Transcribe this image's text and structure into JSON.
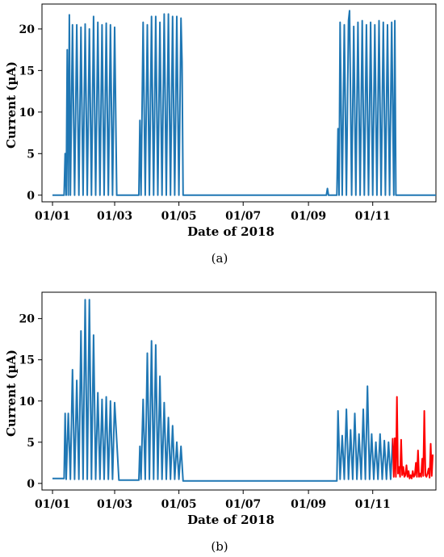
{
  "chart_data": [
    {
      "type": "line",
      "panel_label": "(a)",
      "xlabel": "Date of 2018",
      "ylabel": "Current (µA)",
      "x_ticks": [
        "01/01",
        "01/03",
        "01/05",
        "01/07",
        "01/09",
        "01/11"
      ],
      "x_tick_days": [
        0,
        59,
        120,
        181,
        243,
        304
      ],
      "y_ticks": [
        "0",
        "5",
        "10",
        "15",
        "20"
      ],
      "y_tick_values": [
        0,
        5,
        10,
        15,
        20
      ],
      "xlim": [
        "2017-12-22",
        "2018-12-31"
      ],
      "ylim": [
        -0.8,
        23
      ],
      "grid": false,
      "series": [
        {
          "color": "#1f77b4",
          "x": [
            "2018-01-01",
            "2018-01-12",
            "2018-01-13",
            "2018-01-14",
            "2018-01-15",
            "2018-01-16",
            "2018-01-17",
            "2018-01-18",
            "2018-01-20",
            "2018-01-22",
            "2018-01-24",
            "2018-01-26",
            "2018-01-28",
            "2018-01-30",
            "2018-02-01",
            "2018-02-03",
            "2018-02-05",
            "2018-02-07",
            "2018-02-09",
            "2018-02-11",
            "2018-02-13",
            "2018-02-15",
            "2018-02-17",
            "2018-02-19",
            "2018-02-21",
            "2018-02-23",
            "2018-02-25",
            "2018-02-27",
            "2018-03-01",
            "2018-03-03",
            "2018-03-05",
            "2018-03-24",
            "2018-03-25",
            "2018-03-26",
            "2018-03-28",
            "2018-03-30",
            "2018-04-01",
            "2018-04-03",
            "2018-04-05",
            "2018-04-07",
            "2018-04-09",
            "2018-04-11",
            "2018-04-13",
            "2018-04-15",
            "2018-04-17",
            "2018-04-19",
            "2018-04-21",
            "2018-04-23",
            "2018-04-25",
            "2018-04-27",
            "2018-04-29",
            "2018-05-01",
            "2018-05-03",
            "2018-05-04",
            "2018-05-05",
            "2018-06-01",
            "2018-07-01",
            "2018-08-01",
            "2018-09-01",
            "2018-09-18",
            "2018-09-19",
            "2018-09-20",
            "2018-09-28",
            "2018-09-29",
            "2018-09-30",
            "2018-10-01",
            "2018-10-03",
            "2018-10-05",
            "2018-10-07",
            "2018-10-09",
            "2018-10-10",
            "2018-10-12",
            "2018-10-14",
            "2018-10-16",
            "2018-10-18",
            "2018-10-20",
            "2018-10-22",
            "2018-10-24",
            "2018-10-26",
            "2018-10-28",
            "2018-10-30",
            "2018-11-01",
            "2018-11-03",
            "2018-11-05",
            "2018-11-07",
            "2018-11-09",
            "2018-11-11",
            "2018-11-13",
            "2018-11-15",
            "2018-11-17",
            "2018-11-19",
            "2018-11-21",
            "2018-11-22",
            "2018-11-23",
            "2018-12-31"
          ],
          "y": [
            0,
            0,
            5,
            0,
            17.5,
            0,
            21.7,
            0,
            20.5,
            0,
            20.5,
            0,
            20.2,
            0,
            20.6,
            0,
            20,
            0,
            21.5,
            0,
            20.8,
            0,
            20.5,
            0,
            20.7,
            0,
            20.5,
            0,
            20.2,
            0,
            0,
            0,
            9,
            0,
            20.8,
            0,
            20.5,
            0,
            21.5,
            0,
            21.5,
            0,
            20.8,
            0,
            21.8,
            0,
            21.8,
            0,
            21.5,
            0,
            21.5,
            0,
            21.3,
            16,
            0,
            0,
            0,
            0,
            0,
            0,
            0.8,
            0,
            0,
            8,
            0,
            20.8,
            0,
            20.5,
            0,
            21,
            22.2,
            0,
            20.3,
            0,
            20.8,
            0,
            21,
            0,
            20.5,
            0,
            20.8,
            0,
            20.5,
            0,
            21,
            0,
            20.8,
            0,
            20.5,
            0,
            20.8,
            0,
            21,
            0,
            0
          ]
        }
      ]
    },
    {
      "type": "line",
      "panel_label": "(b)",
      "xlabel": "Date of 2018",
      "ylabel": "Current (µA)",
      "x_ticks": [
        "01/01",
        "01/03",
        "01/05",
        "01/07",
        "01/09",
        "01/11"
      ],
      "x_tick_days": [
        0,
        59,
        120,
        181,
        243,
        304
      ],
      "y_ticks": [
        "0",
        "5",
        "10",
        "15",
        "20"
      ],
      "y_tick_values": [
        0,
        5,
        10,
        15,
        20
      ],
      "xlim": [
        "2017-12-22",
        "2018-12-31"
      ],
      "ylim": [
        -0.8,
        23.2
      ],
      "grid": false,
      "series": [
        {
          "color": "#1f77b4",
          "x": [
            "2018-01-01",
            "2018-01-12",
            "2018-01-13",
            "2018-01-14",
            "2018-01-16",
            "2018-01-18",
            "2018-01-20",
            "2018-01-22",
            "2018-01-24",
            "2018-01-26",
            "2018-01-28",
            "2018-01-30",
            "2018-02-01",
            "2018-02-03",
            "2018-02-05",
            "2018-02-07",
            "2018-02-09",
            "2018-02-11",
            "2018-02-13",
            "2018-02-15",
            "2018-02-17",
            "2018-02-19",
            "2018-02-21",
            "2018-02-23",
            "2018-02-25",
            "2018-02-27",
            "2018-03-01",
            "2018-03-05",
            "2018-03-24",
            "2018-03-25",
            "2018-03-26",
            "2018-03-28",
            "2018-03-30",
            "2018-04-01",
            "2018-04-03",
            "2018-04-05",
            "2018-04-07",
            "2018-04-09",
            "2018-04-11",
            "2018-04-13",
            "2018-04-15",
            "2018-04-17",
            "2018-04-19",
            "2018-04-21",
            "2018-04-23",
            "2018-04-25",
            "2018-04-27",
            "2018-04-29",
            "2018-05-01",
            "2018-05-03",
            "2018-05-05",
            "2018-06-01",
            "2018-07-01",
            "2018-08-01",
            "2018-09-01",
            "2018-09-28",
            "2018-09-29",
            "2018-10-01",
            "2018-10-03",
            "2018-10-05",
            "2018-10-07",
            "2018-10-09",
            "2018-10-11",
            "2018-10-13",
            "2018-10-15",
            "2018-10-17",
            "2018-10-19",
            "2018-10-21",
            "2018-10-23",
            "2018-10-25",
            "2018-10-27",
            "2018-10-29",
            "2018-10-31",
            "2018-11-02",
            "2018-11-04",
            "2018-11-06",
            "2018-11-08",
            "2018-11-10",
            "2018-11-12",
            "2018-11-14",
            "2018-11-16",
            "2018-11-18",
            "2018-11-20"
          ],
          "y": [
            0.6,
            0.6,
            8.5,
            0.5,
            8.5,
            0.5,
            13.8,
            0.5,
            12.5,
            0.5,
            18.5,
            0.5,
            22.3,
            0.5,
            22.3,
            0.5,
            18,
            0.5,
            11,
            0.5,
            10.2,
            0.5,
            10.5,
            0.5,
            10,
            0.5,
            9.8,
            0.4,
            0.4,
            4.5,
            0.5,
            10.2,
            0.5,
            15.8,
            0.5,
            17.3,
            0.5,
            16.8,
            0.5,
            13,
            0.5,
            9.8,
            0.5,
            8,
            0.5,
            7,
            0.5,
            5,
            0.5,
            4.5,
            0.3,
            0.3,
            0.3,
            0.3,
            0.3,
            0.3,
            8.8,
            0.5,
            5.8,
            0.5,
            9,
            0.5,
            6.5,
            0.5,
            8.5,
            0.5,
            6,
            0.5,
            9,
            0.5,
            11.8,
            0.5,
            6,
            0.5,
            5,
            0.5,
            6,
            0.5,
            5.2,
            0.5,
            5,
            0.5,
            5.5
          ]
        },
        {
          "color": "#ff0000",
          "x": [
            "2018-11-20",
            "2018-11-21",
            "2018-11-22",
            "2018-11-23",
            "2018-11-24",
            "2018-11-25",
            "2018-11-26",
            "2018-11-27",
            "2018-11-28",
            "2018-11-29",
            "2018-11-30",
            "2018-12-01",
            "2018-12-02",
            "2018-12-03",
            "2018-12-04",
            "2018-12-05",
            "2018-12-06",
            "2018-12-07",
            "2018-12-08",
            "2018-12-09",
            "2018-12-10",
            "2018-12-11",
            "2018-12-12",
            "2018-12-13",
            "2018-12-14",
            "2018-12-15",
            "2018-12-16",
            "2018-12-17",
            "2018-12-18",
            "2018-12-19",
            "2018-12-20",
            "2018-12-21",
            "2018-12-22",
            "2018-12-23",
            "2018-12-24",
            "2018-12-25",
            "2018-12-26",
            "2018-12-27",
            "2018-12-28"
          ],
          "y": [
            5.5,
            0.8,
            5.5,
            0.8,
            10.5,
            1.2,
            2,
            0.8,
            5.3,
            1,
            2,
            0.8,
            1,
            2.2,
            0.8,
            1.5,
            0.6,
            1,
            0.6,
            1.5,
            0.8,
            1,
            2.5,
            0.8,
            4,
            0.8,
            1.2,
            0.8,
            3,
            0.9,
            8.8,
            1,
            0.8,
            1.2,
            1.8,
            0.7,
            4.8,
            0.9,
            3.5
          ]
        }
      ]
    }
  ]
}
